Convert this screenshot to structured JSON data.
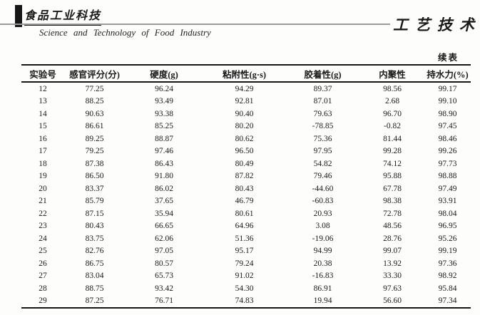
{
  "page": {
    "journal_logo_cn": "食品工业科技",
    "journal_name_en": "Science  and  Technology  of  Food  Industry",
    "section_title": "工艺技术",
    "continued_table_label": "续表"
  },
  "colors": {
    "text": "#1a1a1a",
    "logo_bar": "#161616",
    "rule_gray": "#9b9b9b",
    "table_border": "#161616",
    "page_background": "#fdfdfc"
  },
  "table": {
    "columns": [
      "实验号",
      "感官评分(分)",
      "硬度(g)",
      "粘附性(g·s)",
      "胶着性(g)",
      "内聚性",
      "持水力(%)"
    ],
    "rows": [
      [
        "12",
        "77.25",
        "96.24",
        "94.29",
        "89.37",
        "98.56",
        "99.17"
      ],
      [
        "13",
        "88.25",
        "93.49",
        "92.81",
        "87.01",
        "2.68",
        "99.10"
      ],
      [
        "14",
        "90.63",
        "93.38",
        "90.40",
        "79.63",
        "96.70",
        "98.90"
      ],
      [
        "15",
        "86.61",
        "85.25",
        "80.20",
        "-78.85",
        "-0.82",
        "97.45"
      ],
      [
        "16",
        "89.25",
        "88.87",
        "80.62",
        "75.36",
        "81.44",
        "98.46"
      ],
      [
        "17",
        "79.25",
        "97.46",
        "96.50",
        "97.95",
        "99.28",
        "99.26"
      ],
      [
        "18",
        "87.38",
        "86.43",
        "80.49",
        "54.82",
        "74.12",
        "97.73"
      ],
      [
        "19",
        "86.50",
        "91.80",
        "87.82",
        "79.46",
        "95.88",
        "98.88"
      ],
      [
        "20",
        "83.37",
        "86.02",
        "80.43",
        "-44.60",
        "67.78",
        "97.49"
      ],
      [
        "21",
        "85.79",
        "37.65",
        "46.79",
        "-60.83",
        "98.38",
        "93.91"
      ],
      [
        "22",
        "87.15",
        "35.94",
        "80.61",
        "20.93",
        "72.78",
        "98.04"
      ],
      [
        "23",
        "80.43",
        "66.65",
        "64.96",
        "3.08",
        "48.56",
        "96.95"
      ],
      [
        "24",
        "83.75",
        "62.06",
        "51.36",
        "-19.06",
        "28.76",
        "95.26"
      ],
      [
        "25",
        "82.76",
        "97.05",
        "95.17",
        "94.99",
        "99.07",
        "99.19"
      ],
      [
        "26",
        "86.75",
        "80.57",
        "79.24",
        "20.38",
        "13.92",
        "97.36"
      ],
      [
        "27",
        "83.04",
        "65.73",
        "91.02",
        "-16.83",
        "33.30",
        "98.92"
      ],
      [
        "28",
        "88.75",
        "93.42",
        "54.30",
        "86.91",
        "97.63",
        "95.84"
      ],
      [
        "29",
        "87.25",
        "76.71",
        "74.83",
        "19.94",
        "56.60",
        "97.34"
      ]
    ]
  }
}
